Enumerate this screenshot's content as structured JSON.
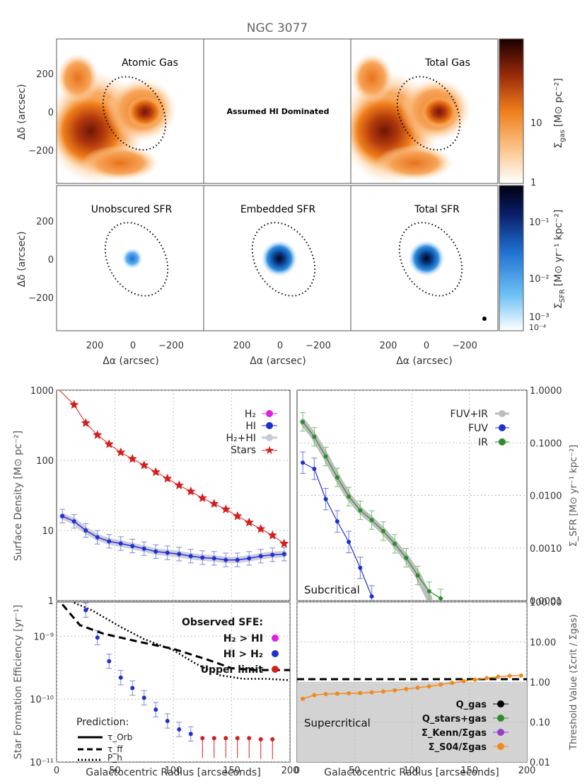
{
  "figure": {
    "title": "NGC 3077"
  },
  "colors": {
    "stars": "#d21f1f",
    "hi": "#1f2fd0",
    "h2": "#e01fe0",
    "h2hi": "#c8c8d8",
    "fuvir": "#bdbdbd",
    "fuv": "#1f2fd0",
    "ir": "#2e8b2e",
    "threshold": "#f08a1e",
    "orange_map": "#ef7f1a",
    "blue_map": "#0b5fb8",
    "upper": "#d21f1f",
    "grid": "#bfbfbf",
    "gray_fill": "#d3d3d3"
  },
  "chart_data": [
    {
      "type": "heatmap",
      "id": "map-atomic-gas",
      "label": "Atomic Gas",
      "xlabel": "Δα (arcsec)",
      "ylabel": "Δδ (arcsec)",
      "xlim": [
        380,
        -380
      ],
      "ylim": [
        -380,
        380
      ],
      "xticks": [
        "200",
        "0",
        "−200"
      ],
      "yticks": [
        "200",
        "0",
        "−200"
      ]
    },
    {
      "type": "heatmap",
      "id": "map-assumed-hi",
      "label": "Assumed HI Dominated"
    },
    {
      "type": "heatmap",
      "id": "map-total-gas",
      "label": "Total Gas",
      "colorbar": {
        "label_main": "Σ",
        "label_sub": "gas",
        "label_units": "[M⊙ pc⁻²]",
        "ticks": [
          "10",
          "1"
        ]
      }
    },
    {
      "type": "heatmap",
      "id": "map-unobscured-sfr",
      "label": "Unobscured SFR"
    },
    {
      "type": "heatmap",
      "id": "map-embedded-sfr",
      "label": "Embedded SFR"
    },
    {
      "type": "heatmap",
      "id": "map-total-sfr",
      "label": "Total SFR",
      "colorbar": {
        "label_main": "Σ",
        "label_sub": "SFR",
        "label_units": "[M⊙ yr⁻¹ kpc⁻²]",
        "ticks": [
          "10⁻¹",
          "10⁻²",
          "10⁻³",
          "10⁻⁴"
        ]
      }
    },
    {
      "type": "line",
      "id": "surface-density",
      "ylabel": "Surface Density [M⊙ pc⁻²]",
      "xlim": [
        0,
        200
      ],
      "ylim": [
        1,
        1000
      ],
      "yscale": "log",
      "yticks": [
        "1000",
        "100",
        "10",
        "1"
      ],
      "legend": [
        "H₂",
        "HI",
        "H₂+HI",
        "Stars"
      ],
      "series": [
        {
          "name": "Stars",
          "x": [
            15,
            25,
            35,
            45,
            55,
            65,
            75,
            85,
            95,
            105,
            115,
            125,
            135,
            145,
            155,
            165,
            175,
            185,
            195
          ],
          "y": [
            620,
            340,
            230,
            170,
            130,
            105,
            85,
            68,
            55,
            44,
            36,
            29,
            24,
            20,
            16,
            13,
            10.5,
            8.5,
            6.5
          ]
        },
        {
          "name": "HI",
          "x": [
            5,
            15,
            25,
            35,
            45,
            55,
            65,
            75,
            85,
            95,
            105,
            115,
            125,
            135,
            145,
            155,
            165,
            175,
            185,
            195
          ],
          "y": [
            16,
            13.5,
            10,
            8,
            7,
            6.5,
            6,
            5.5,
            5,
            4.8,
            4.6,
            4.3,
            4.1,
            4.0,
            3.8,
            3.8,
            4.0,
            4.3,
            4.5,
            4.6
          ]
        }
      ]
    },
    {
      "type": "line",
      "id": "sfr-density",
      "ylabel": "Σ_SFR [M⊙ yr⁻¹ kpc⁻²]",
      "xlim": [
        0,
        200
      ],
      "ylim": [
        0.0001,
        1.0
      ],
      "yscale": "log",
      "yticks": [
        "1.0000",
        "0.1000",
        "0.0100",
        "0.0010",
        "0.0001"
      ],
      "legend": [
        "FUV+IR",
        "FUV",
        "IR"
      ],
      "series": [
        {
          "name": "FUV+IR",
          "x": [
            5,
            15,
            25,
            35,
            45,
            55,
            65,
            75,
            85,
            95,
            105,
            115
          ],
          "y": [
            0.25,
            0.13,
            0.055,
            0.022,
            0.0095,
            0.0052,
            0.0034,
            0.0021,
            0.0012,
            0.00065,
            0.00031,
            0.00011
          ]
        },
        {
          "name": "FUV",
          "x": [
            5,
            15,
            25,
            35,
            45,
            55,
            65
          ],
          "y": [
            0.042,
            0.032,
            0.0085,
            0.0032,
            0.0013,
            0.00042,
            0.00012
          ]
        },
        {
          "name": "IR",
          "x": [
            5,
            15,
            25,
            35,
            45,
            55,
            65,
            75,
            85,
            95,
            105,
            115,
            125
          ],
          "y": [
            0.25,
            0.13,
            0.055,
            0.022,
            0.0095,
            0.0052,
            0.0034,
            0.0021,
            0.0012,
            0.00065,
            0.0003,
            0.00015,
            0.00011
          ]
        }
      ]
    },
    {
      "type": "scatter",
      "id": "star-formation-efficiency",
      "xlabel": "Galactocentric Radius [arcseconds]",
      "ylabel": "Star Formation Efficiency [yr⁻¹]",
      "xlim": [
        0,
        200
      ],
      "ylim": [
        1e-11,
        3.5e-09
      ],
      "yscale": "log",
      "xticks": [
        "0",
        "50",
        "100",
        "150",
        "200"
      ],
      "yticks": [
        "10⁻⁹",
        "10⁻¹⁰",
        "10⁻¹¹"
      ],
      "legend_title": "Observed SFE:",
      "legend": [
        "H₂ > HI",
        "HI > H₂",
        "Upper limit"
      ],
      "prediction_title": "Prediction:",
      "prediction_legend": [
        "τ_Orb",
        "τ_ff",
        "P_h"
      ],
      "series": [
        {
          "name": "HI > H₂",
          "x": [
            25,
            35,
            45,
            55,
            65,
            75,
            85,
            95,
            105,
            115
          ],
          "y": [
            2.6e-09,
            9.5e-10,
            4e-10,
            2.2e-10,
            1.5e-10,
            1.05e-10,
            6.8e-11,
            4.5e-11,
            3.3e-11,
            2.8e-11
          ]
        },
        {
          "name": "Upper limit",
          "x": [
            125,
            135,
            145,
            155,
            165,
            175,
            185
          ],
          "y": [
            2.4e-11,
            2.4e-11,
            2.4e-11,
            2.4e-11,
            2.4e-11,
            2.3e-11,
            2.3e-11
          ]
        },
        {
          "name": "τ_ff",
          "x": [
            5,
            20,
            40,
            70,
            100,
            130,
            150,
            170,
            200
          ],
          "y": [
            3.2e-09,
            1.5e-09,
            1.1e-09,
            8.2e-10,
            6.3e-10,
            4.2e-10,
            3.1e-10,
            2.9e-10,
            2.9e-10
          ]
        },
        {
          "name": "P_h",
          "x": [
            15,
            30,
            55,
            75,
            100,
            120,
            140,
            160,
            180,
            200
          ],
          "y": [
            3.4e-09,
            2.6e-09,
            1.4e-09,
            9e-10,
            6e-10,
            3.6e-10,
            2.4e-10,
            2.1e-10,
            2.1e-10,
            2e-10
          ]
        }
      ]
    },
    {
      "type": "line",
      "id": "threshold-value",
      "xlabel": "Galactocentric Radius [arcseconds]",
      "ylabel": "Threshold Value (Σcrit / Σgas)",
      "xlim": [
        0,
        200
      ],
      "ylim": [
        0.01,
        100
      ],
      "yscale": "log",
      "xticks": [
        "0",
        "50",
        "100",
        "150",
        "200"
      ],
      "yticks": [
        "100.00",
        "10.00",
        "1.00",
        "0.10",
        "0.01"
      ],
      "region_labels": [
        "Subcritical",
        "Supercritical"
      ],
      "legend": [
        "Q_gas",
        "Q_stars+gas",
        "Σ_Kenn/Σgas",
        "Σ_S04/Σgas"
      ],
      "threshold_line": 1.0,
      "series": [
        {
          "name": "Σ_S04/Σgas",
          "x": [
            5,
            15,
            25,
            35,
            45,
            55,
            65,
            75,
            85,
            95,
            105,
            115,
            125,
            135,
            145,
            155,
            165,
            175,
            185,
            195
          ],
          "y": [
            0.38,
            0.47,
            0.5,
            0.51,
            0.52,
            0.53,
            0.55,
            0.58,
            0.62,
            0.67,
            0.72,
            0.78,
            0.86,
            0.95,
            1.05,
            1.15,
            1.25,
            1.35,
            1.42,
            1.45
          ]
        }
      ]
    }
  ]
}
